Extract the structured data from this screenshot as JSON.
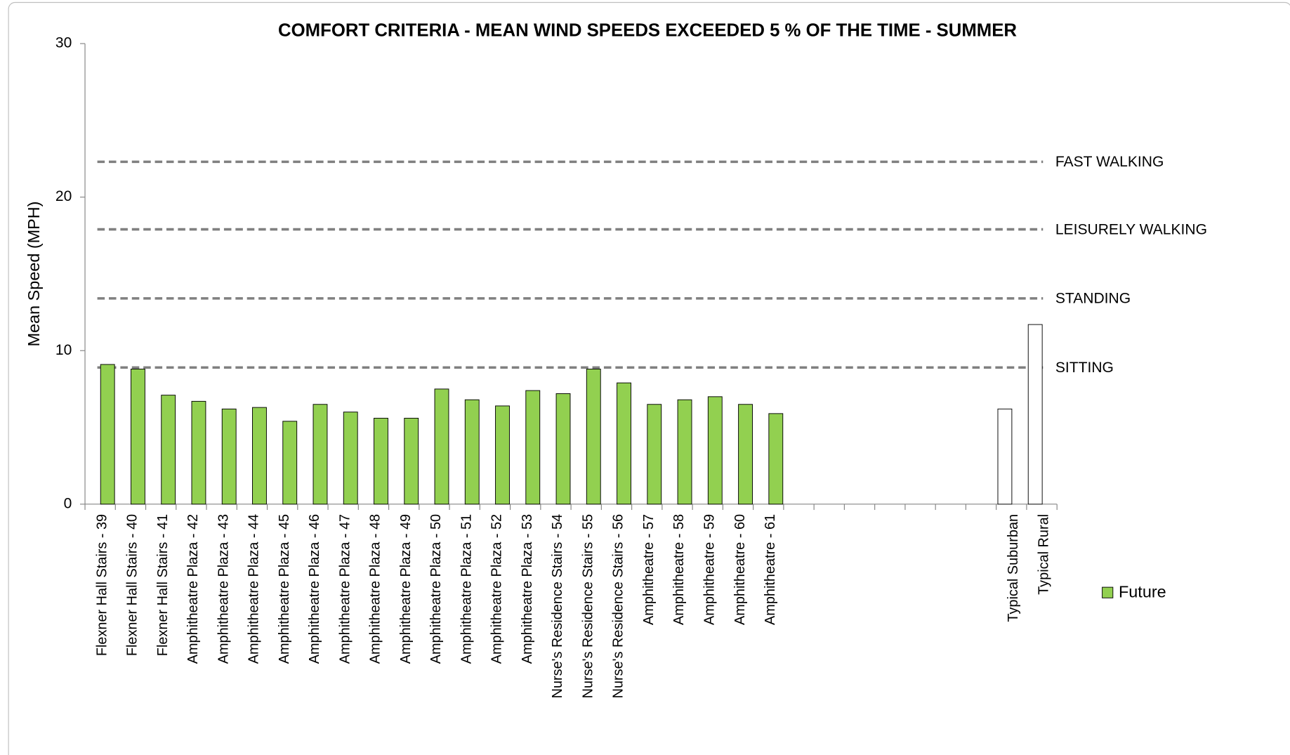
{
  "chart_data": {
    "type": "bar",
    "title": "COMFORT CRITERIA - MEAN WIND SPEEDS EXCEEDED 5 % OF THE TIME - SUMMER",
    "y_label": "Mean Speed (MPH)",
    "categories": [
      "Flexner Hall Stairs - 39",
      "Flexner Hall Stairs - 40",
      "Flexner Hall Stairs - 41",
      "Amphitheatre Plaza - 42",
      "Amphitheatre Plaza - 43",
      "Amphitheatre Plaza - 44",
      "Amphitheatre Plaza - 45",
      "Amphitheatre Plaza - 46",
      "Amphitheatre Plaza - 47",
      "Amphitheatre Plaza - 48",
      "Amphitheatre Plaza - 49",
      "Amphitheatre Plaza - 50",
      "Amphitheatre Plaza - 51",
      "Amphitheatre Plaza - 52",
      "Amphitheatre Plaza - 53",
      "Nurse's Residence Stairs - 54",
      "Nurse's Residence Stairs - 55",
      "Nurse's Residence Stairs - 56",
      "Amphitheatre - 57",
      "Amphitheatre - 58",
      "Amphitheatre - 59",
      "Amphitheatre - 60",
      "Amphitheatre - 61",
      null,
      null,
      null,
      null,
      null,
      null,
      null,
      "Typical Suburban",
      "Typical Rural"
    ],
    "series": [
      {
        "name": "Future",
        "color": "#92d050",
        "values": [
          9.1,
          8.8,
          7.1,
          6.7,
          6.2,
          6.3,
          5.4,
          6.5,
          6.0,
          5.6,
          5.6,
          7.5,
          6.8,
          6.4,
          7.4,
          7.2,
          8.8,
          7.9,
          6.5,
          6.8,
          7.0,
          6.5,
          5.9,
          null,
          null,
          null,
          null,
          null,
          null,
          null,
          null,
          null
        ]
      },
      {
        "color": "#ffffff",
        "values": [
          null,
          null,
          null,
          null,
          null,
          null,
          null,
          null,
          null,
          null,
          null,
          null,
          null,
          null,
          null,
          null,
          null,
          null,
          null,
          null,
          null,
          null,
          null,
          null,
          null,
          null,
          null,
          null,
          null,
          null,
          6.2,
          11.7
        ]
      }
    ],
    "reference_lines": [
      {
        "label": "FAST WALKING",
        "value": 22.3
      },
      {
        "label": "LEISURELY WALKING",
        "value": 17.9
      },
      {
        "label": "STANDING",
        "value": 13.4
      },
      {
        "label": "SITTING",
        "value": 8.9
      }
    ],
    "reference_color": "#808080",
    "ylim": [
      0,
      30
    ],
    "yticks": [
      0,
      10,
      20,
      30
    ],
    "grid": false,
    "legend": "right"
  }
}
